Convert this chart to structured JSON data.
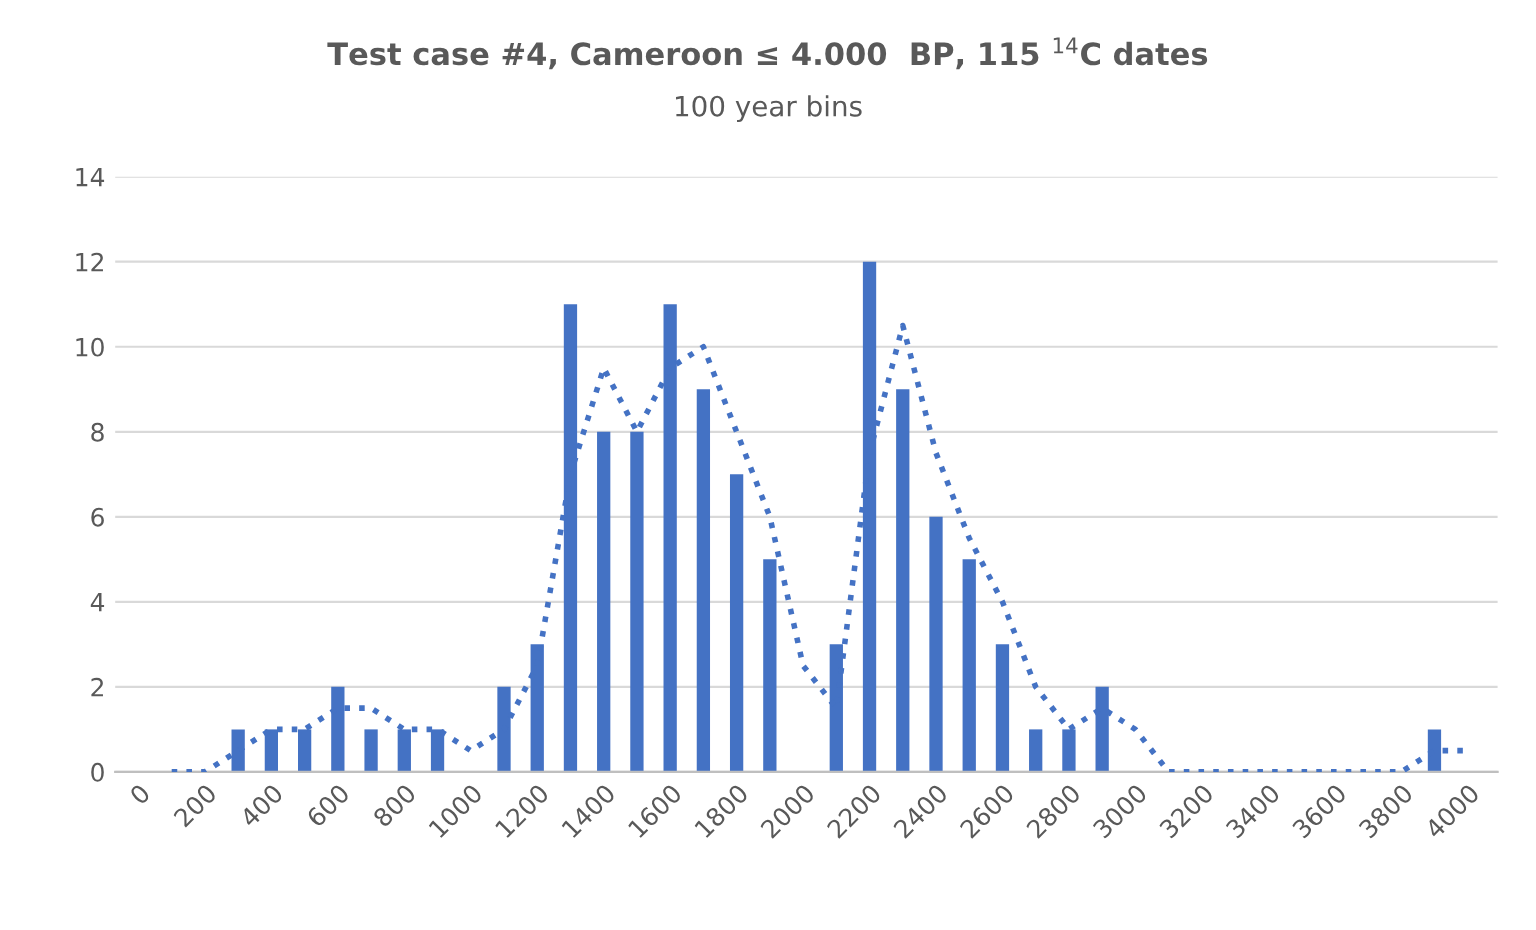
{
  "chart_data": {
    "type": "bar",
    "title": "Test case #4, Cameroon ≤ 4.000  BP, 115 $^{14}$C dates",
    "subtitle": "100 year bins",
    "categories": [
      "0",
      null,
      "200",
      null,
      "400",
      null,
      "600",
      null,
      "800",
      null,
      "1000",
      null,
      "1200",
      null,
      "1400",
      null,
      "1600",
      null,
      "1800",
      null,
      "2000",
      null,
      "2200",
      null,
      "2400",
      null,
      "2600",
      null,
      "2800",
      null,
      "3000",
      null,
      "3200",
      null,
      "3400",
      null,
      "3600",
      null,
      "3800",
      null,
      "4000"
    ],
    "series": [
      {
        "color": "#4472c4",
        "values": [
          0,
          0,
          0,
          1,
          1,
          1,
          2,
          1,
          1,
          1,
          0,
          2,
          3,
          11,
          8,
          8,
          11,
          9,
          7,
          5,
          0,
          3,
          12,
          9,
          6,
          5,
          3,
          1,
          1,
          2,
          0,
          0,
          0,
          0,
          0,
          0,
          0,
          0,
          0,
          1,
          0
        ]
      },
      {
        "type": "line",
        "color": "#4472c4",
        "line_style": "dotted",
        "values": [
          null,
          0,
          0,
          0.5,
          1,
          1,
          1.5,
          1.5,
          1,
          1,
          0.5,
          1,
          2.5,
          7,
          9.5,
          8,
          9.5,
          10,
          8,
          6,
          2.5,
          1.5,
          7.5,
          10.5,
          7.5,
          5.5,
          4,
          2,
          1,
          1.5,
          1,
          0,
          0,
          0,
          0,
          0,
          0,
          0,
          0,
          0.5,
          0.5
        ]
      }
    ],
    "ylim": [
      0,
      14
    ],
    "yticks": [
      0,
      2,
      4,
      6,
      8,
      10,
      12,
      14
    ],
    "grid": "y",
    "legend": false
  }
}
